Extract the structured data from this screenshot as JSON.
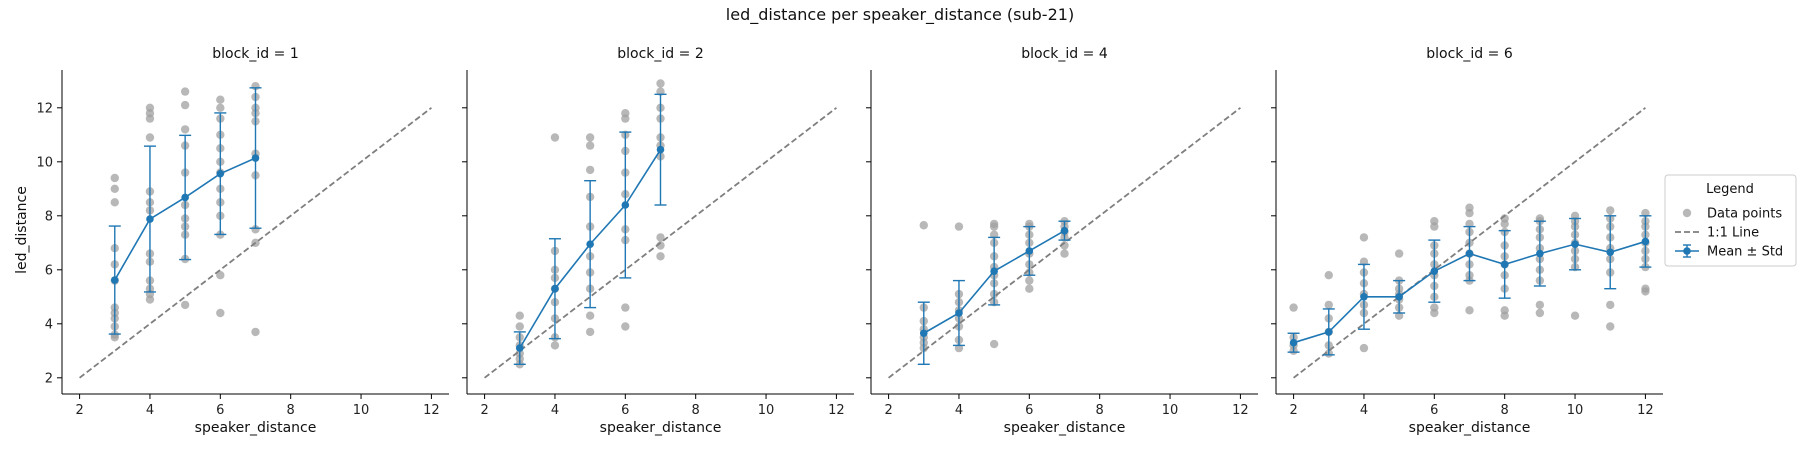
{
  "chart_data": {
    "type": "scatter",
    "title": "led_distance per speaker_distance (sub-21)",
    "xlabel": "speaker_distance",
    "ylabel": "led_distance",
    "xlim": [
      1.5,
      12.5
    ],
    "ylim": [
      1.4,
      13.4
    ],
    "x_ticks": [
      2,
      4,
      6,
      8,
      10,
      12
    ],
    "y_ticks": [
      2,
      4,
      6,
      8,
      10,
      12
    ],
    "grid": false,
    "legend": {
      "title": "Legend",
      "placement": "center-right",
      "entries": [
        "Data points",
        "1:1 Line",
        "Mean ± Std"
      ]
    },
    "colors": {
      "points": "#a0a0a0",
      "identity": "#7f7f7f",
      "mean": "#1f77b4"
    },
    "identity_line": {
      "x": [
        2,
        12
      ],
      "y": [
        2,
        12
      ]
    },
    "panels": [
      {
        "title": "block_id = 1",
        "points": [
          [
            3,
            9.4
          ],
          [
            3,
            9.0
          ],
          [
            3,
            8.5
          ],
          [
            3,
            6.8
          ],
          [
            3,
            6.2
          ],
          [
            3,
            5.6
          ],
          [
            3,
            4.6
          ],
          [
            3,
            4.4
          ],
          [
            3,
            4.2
          ],
          [
            3,
            3.9
          ],
          [
            3,
            3.6
          ],
          [
            3,
            3.5
          ],
          [
            4,
            12.0
          ],
          [
            4,
            11.8
          ],
          [
            4,
            11.6
          ],
          [
            4,
            10.9
          ],
          [
            4,
            8.9
          ],
          [
            4,
            8.5
          ],
          [
            4,
            8.2
          ],
          [
            4,
            6.6
          ],
          [
            4,
            6.3
          ],
          [
            4,
            5.6
          ],
          [
            4,
            5.3
          ],
          [
            4,
            5.1
          ],
          [
            4,
            4.9
          ],
          [
            5,
            12.6
          ],
          [
            5,
            12.1
          ],
          [
            5,
            11.2
          ],
          [
            5,
            10.6
          ],
          [
            5,
            9.6
          ],
          [
            5,
            8.4
          ],
          [
            5,
            7.9
          ],
          [
            5,
            7.6
          ],
          [
            5,
            7.3
          ],
          [
            5,
            6.4
          ],
          [
            5,
            4.7
          ],
          [
            6,
            12.3
          ],
          [
            6,
            12.0
          ],
          [
            6,
            11.6
          ],
          [
            6,
            11.0
          ],
          [
            6,
            10.5
          ],
          [
            6,
            10.0
          ],
          [
            6,
            9.6
          ],
          [
            6,
            9.0
          ],
          [
            6,
            8.5
          ],
          [
            6,
            8.0
          ],
          [
            6,
            7.3
          ],
          [
            6,
            5.8
          ],
          [
            6,
            4.4
          ],
          [
            7,
            12.8
          ],
          [
            7,
            12.4
          ],
          [
            7,
            12.0
          ],
          [
            7,
            11.8
          ],
          [
            7,
            11.5
          ],
          [
            7,
            10.3
          ],
          [
            7,
            9.5
          ],
          [
            7,
            7.5
          ],
          [
            7,
            7.0
          ],
          [
            7,
            3.7
          ]
        ],
        "mean": [
          {
            "x": 3,
            "y": 5.62,
            "std": 2.0
          },
          {
            "x": 4,
            "y": 7.88,
            "std": 2.7
          },
          {
            "x": 5,
            "y": 8.68,
            "std": 2.3
          },
          {
            "x": 6,
            "y": 9.56,
            "std": 2.25
          },
          {
            "x": 7,
            "y": 10.14,
            "std": 2.6
          }
        ]
      },
      {
        "title": "block_id = 2",
        "points": [
          [
            3,
            4.3
          ],
          [
            3,
            3.9
          ],
          [
            3,
            3.5
          ],
          [
            3,
            3.2
          ],
          [
            3,
            2.9
          ],
          [
            3,
            2.7
          ],
          [
            3,
            2.5
          ],
          [
            4,
            10.9
          ],
          [
            4,
            6.7
          ],
          [
            4,
            6.0
          ],
          [
            4,
            5.7
          ],
          [
            4,
            5.3
          ],
          [
            4,
            4.8
          ],
          [
            4,
            4.2
          ],
          [
            4,
            3.5
          ],
          [
            4,
            3.2
          ],
          [
            5,
            10.9
          ],
          [
            5,
            10.6
          ],
          [
            5,
            9.7
          ],
          [
            5,
            8.7
          ],
          [
            5,
            7.6
          ],
          [
            5,
            6.5
          ],
          [
            5,
            5.9
          ],
          [
            5,
            5.3
          ],
          [
            5,
            4.3
          ],
          [
            5,
            3.7
          ],
          [
            6,
            11.8
          ],
          [
            6,
            11.6
          ],
          [
            6,
            11.0
          ],
          [
            6,
            10.4
          ],
          [
            6,
            9.6
          ],
          [
            6,
            8.8
          ],
          [
            6,
            7.5
          ],
          [
            6,
            7.1
          ],
          [
            6,
            4.6
          ],
          [
            6,
            3.9
          ],
          [
            7,
            12.9
          ],
          [
            7,
            12.6
          ],
          [
            7,
            12.0
          ],
          [
            7,
            11.6
          ],
          [
            7,
            10.9
          ],
          [
            7,
            10.6
          ],
          [
            7,
            10.2
          ],
          [
            7,
            7.2
          ],
          [
            7,
            6.9
          ],
          [
            7,
            6.5
          ]
        ],
        "mean": [
          {
            "x": 3,
            "y": 3.1,
            "std": 0.6
          },
          {
            "x": 4,
            "y": 5.3,
            "std": 1.85
          },
          {
            "x": 5,
            "y": 6.95,
            "std": 2.35
          },
          {
            "x": 6,
            "y": 8.4,
            "std": 2.7
          },
          {
            "x": 7,
            "y": 10.45,
            "std": 2.05
          }
        ]
      },
      {
        "title": "block_id = 4",
        "points": [
          [
            3,
            7.65
          ],
          [
            3,
            4.6
          ],
          [
            3,
            4.1
          ],
          [
            3,
            3.8
          ],
          [
            3,
            3.5
          ],
          [
            3,
            3.3
          ],
          [
            3,
            3.1
          ],
          [
            4,
            7.6
          ],
          [
            4,
            5.1
          ],
          [
            4,
            4.8
          ],
          [
            4,
            4.5
          ],
          [
            4,
            4.2
          ],
          [
            4,
            3.9
          ],
          [
            4,
            3.4
          ],
          [
            4,
            3.1
          ],
          [
            5,
            7.7
          ],
          [
            5,
            7.6
          ],
          [
            5,
            7.3
          ],
          [
            5,
            7.0
          ],
          [
            5,
            6.5
          ],
          [
            5,
            6.1
          ],
          [
            5,
            5.8
          ],
          [
            5,
            5.5
          ],
          [
            5,
            5.1
          ],
          [
            5,
            4.8
          ],
          [
            5,
            3.25
          ],
          [
            6,
            7.7
          ],
          [
            6,
            7.6
          ],
          [
            6,
            7.3
          ],
          [
            6,
            7.0
          ],
          [
            6,
            6.6
          ],
          [
            6,
            6.2
          ],
          [
            6,
            5.9
          ],
          [
            6,
            5.6
          ],
          [
            6,
            5.3
          ],
          [
            7,
            7.8
          ],
          [
            7,
            7.6
          ],
          [
            7,
            7.4
          ],
          [
            7,
            7.2
          ],
          [
            7,
            6.9
          ],
          [
            7,
            6.6
          ]
        ],
        "mean": [
          {
            "x": 3,
            "y": 3.65,
            "std": 1.15
          },
          {
            "x": 4,
            "y": 4.4,
            "std": 1.2
          },
          {
            "x": 5,
            "y": 5.95,
            "std": 1.25
          },
          {
            "x": 6,
            "y": 6.7,
            "std": 0.9
          },
          {
            "x": 7,
            "y": 7.45,
            "std": 0.35
          }
        ]
      },
      {
        "title": "block_id = 6",
        "points": [
          [
            2,
            4.6
          ],
          [
            2,
            3.5
          ],
          [
            2,
            3.2
          ],
          [
            2,
            3.0
          ],
          [
            3,
            5.8
          ],
          [
            3,
            4.7
          ],
          [
            3,
            4.2
          ],
          [
            3,
            3.7
          ],
          [
            3,
            3.2
          ],
          [
            3,
            2.9
          ],
          [
            4,
            7.2
          ],
          [
            4,
            6.3
          ],
          [
            4,
            5.9
          ],
          [
            4,
            5.5
          ],
          [
            4,
            5.1
          ],
          [
            4,
            4.7
          ],
          [
            4,
            4.4
          ],
          [
            4,
            3.1
          ],
          [
            5,
            6.6
          ],
          [
            5,
            5.6
          ],
          [
            5,
            5.3
          ],
          [
            5,
            5.1
          ],
          [
            5,
            4.9
          ],
          [
            5,
            4.6
          ],
          [
            5,
            4.3
          ],
          [
            6,
            7.8
          ],
          [
            6,
            7.6
          ],
          [
            6,
            6.9
          ],
          [
            6,
            6.6
          ],
          [
            6,
            6.2
          ],
          [
            6,
            5.8
          ],
          [
            6,
            5.4
          ],
          [
            6,
            5.0
          ],
          [
            6,
            4.6
          ],
          [
            6,
            4.4
          ],
          [
            7,
            8.3
          ],
          [
            7,
            8.1
          ],
          [
            7,
            7.7
          ],
          [
            7,
            7.4
          ],
          [
            7,
            7.0
          ],
          [
            7,
            6.6
          ],
          [
            7,
            6.2
          ],
          [
            7,
            5.8
          ],
          [
            7,
            5.6
          ],
          [
            7,
            4.5
          ],
          [
            8,
            7.9
          ],
          [
            8,
            7.7
          ],
          [
            8,
            7.4
          ],
          [
            8,
            6.9
          ],
          [
            8,
            6.5
          ],
          [
            8,
            6.2
          ],
          [
            8,
            5.8
          ],
          [
            8,
            5.3
          ],
          [
            8,
            4.5
          ],
          [
            8,
            4.3
          ],
          [
            9,
            7.9
          ],
          [
            9,
            7.8
          ],
          [
            9,
            7.5
          ],
          [
            9,
            7.2
          ],
          [
            9,
            6.8
          ],
          [
            9,
            6.4
          ],
          [
            9,
            6.0
          ],
          [
            9,
            5.6
          ],
          [
            9,
            4.7
          ],
          [
            9,
            4.4
          ],
          [
            10,
            8.0
          ],
          [
            10,
            7.8
          ],
          [
            10,
            7.6
          ],
          [
            10,
            7.3
          ],
          [
            10,
            7.0
          ],
          [
            10,
            6.7
          ],
          [
            10,
            6.4
          ],
          [
            10,
            6.1
          ],
          [
            10,
            4.3
          ],
          [
            11,
            8.2
          ],
          [
            11,
            7.9
          ],
          [
            11,
            7.6
          ],
          [
            11,
            7.2
          ],
          [
            11,
            6.8
          ],
          [
            11,
            6.4
          ],
          [
            11,
            5.9
          ],
          [
            11,
            4.7
          ],
          [
            11,
            3.9
          ],
          [
            12,
            8.1
          ],
          [
            12,
            7.8
          ],
          [
            12,
            7.6
          ],
          [
            12,
            7.3
          ],
          [
            12,
            7.0
          ],
          [
            12,
            6.7
          ],
          [
            12,
            6.4
          ],
          [
            12,
            6.1
          ],
          [
            12,
            5.3
          ],
          [
            12,
            5.2
          ]
        ],
        "mean": [
          {
            "x": 2,
            "y": 3.3,
            "std": 0.35
          },
          {
            "x": 3,
            "y": 3.7,
            "std": 0.85
          },
          {
            "x": 4,
            "y": 5.0,
            "std": 1.2
          },
          {
            "x": 5,
            "y": 5.0,
            "std": 0.6
          },
          {
            "x": 6,
            "y": 5.95,
            "std": 1.15
          },
          {
            "x": 7,
            "y": 6.6,
            "std": 1.0
          },
          {
            "x": 8,
            "y": 6.2,
            "std": 1.25
          },
          {
            "x": 9,
            "y": 6.6,
            "std": 1.2
          },
          {
            "x": 10,
            "y": 6.95,
            "std": 0.95
          },
          {
            "x": 11,
            "y": 6.65,
            "std": 1.35
          },
          {
            "x": 12,
            "y": 7.05,
            "std": 0.95
          }
        ]
      }
    ]
  }
}
